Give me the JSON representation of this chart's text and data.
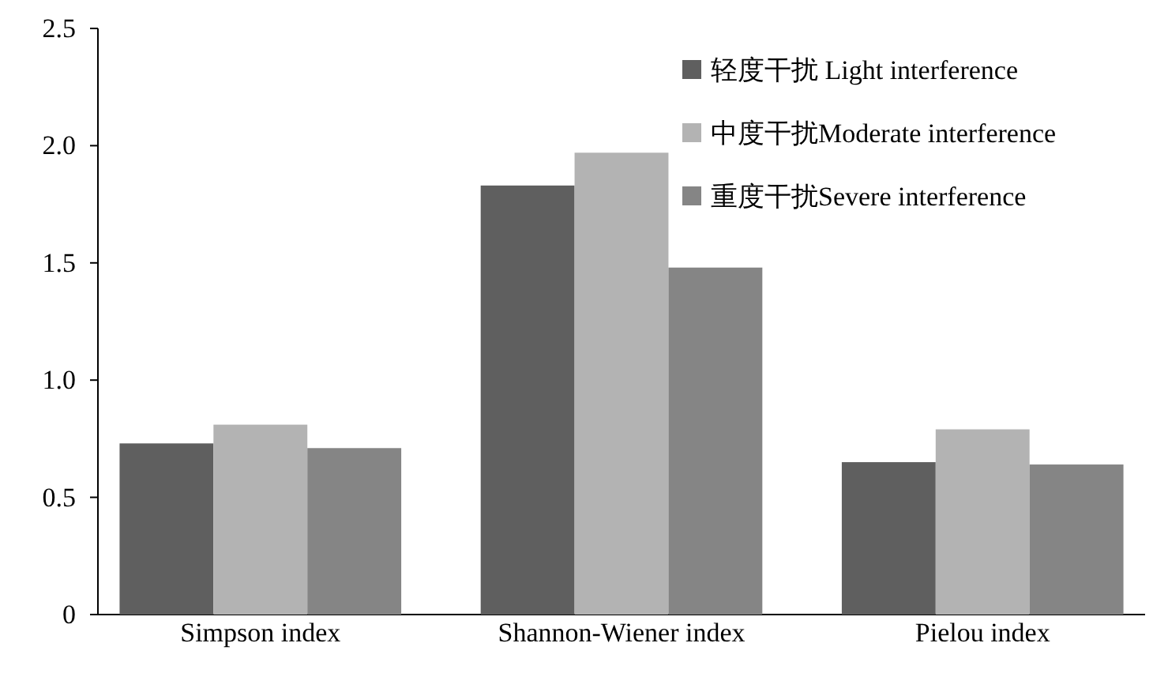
{
  "chart_data": {
    "type": "bar",
    "categories": [
      "Simpson index",
      "Shannon-Wiener index",
      "Pielou index"
    ],
    "series": [
      {
        "name": "轻度干扰  Light interference",
        "color": "#5f5f5f",
        "values": [
          0.73,
          1.83,
          0.65
        ]
      },
      {
        "name": "中度干扰Moderate interference",
        "color": "#b3b3b3",
        "values": [
          0.81,
          1.97,
          0.79
        ]
      },
      {
        "name": "重度干扰Severe interference",
        "color": "#858585",
        "values": [
          0.71,
          1.48,
          0.64
        ]
      }
    ],
    "ylim": [
      0,
      2.5
    ],
    "yticks": [
      0,
      {
        "value": 0.5,
        "label": "0.5"
      },
      {
        "value": 1,
        "label": "1.0"
      },
      {
        "value": 1.5,
        "label": "1.5"
      },
      {
        "value": 2,
        "label": "2.0"
      },
      {
        "value": 2.5,
        "label": "2.5"
      }
    ],
    "grid": false,
    "legend": "top right"
  }
}
